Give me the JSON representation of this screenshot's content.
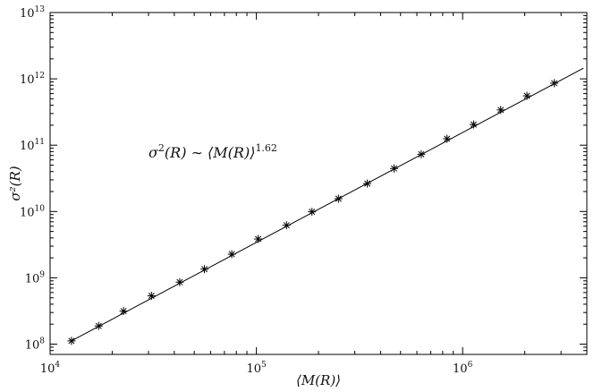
{
  "chart_data": {
    "type": "scatter",
    "title": "",
    "xlabel": "⟨M(R)⟩",
    "ylabel": "σ²(R)",
    "xscale": "log",
    "yscale": "log",
    "xlim": [
      10000,
      4000000
    ],
    "ylim": [
      70000000,
      10000000000000
    ],
    "grid": false,
    "legend": "none",
    "x_ticks": [
      {
        "base": "10",
        "exp": "4",
        "value": 10000
      },
      {
        "base": "10",
        "exp": "5",
        "value": 100000
      },
      {
        "base": "10",
        "exp": "6",
        "value": 1000000
      }
    ],
    "y_ticks": [
      {
        "base": "10",
        "exp": "8",
        "value": 100000000
      },
      {
        "base": "10",
        "exp": "9",
        "value": 1000000000
      },
      {
        "base": "10",
        "exp": "10",
        "value": 10000000000
      },
      {
        "base": "10",
        "exp": "11",
        "value": 100000000000
      },
      {
        "base": "10",
        "exp": "12",
        "value": 1000000000000
      },
      {
        "base": "10",
        "exp": "13",
        "value": 10000000000000
      }
    ],
    "series": [
      {
        "marker": "asterisk",
        "line": false,
        "points": [
          {
            "x": 12700,
            "y": 112000000
          },
          {
            "x": 17200,
            "y": 188000000
          },
          {
            "x": 22700,
            "y": 315000000
          },
          {
            "x": 31000,
            "y": 535000000
          },
          {
            "x": 42500,
            "y": 860000000
          },
          {
            "x": 56000,
            "y": 1350000000
          },
          {
            "x": 76000,
            "y": 2270000000
          },
          {
            "x": 102000,
            "y": 3850000000
          },
          {
            "x": 140000,
            "y": 6200000000
          },
          {
            "x": 186000,
            "y": 9900000000
          },
          {
            "x": 250000,
            "y": 15600000000
          },
          {
            "x": 345000,
            "y": 26400000000
          },
          {
            "x": 465000,
            "y": 44500000000
          },
          {
            "x": 630000,
            "y": 73000000000
          },
          {
            "x": 840000,
            "y": 125000000000
          },
          {
            "x": 1130000,
            "y": 205000000000
          },
          {
            "x": 1530000,
            "y": 340000000000
          },
          {
            "x": 2050000,
            "y": 555000000000
          },
          {
            "x": 2780000,
            "y": 860000000000
          }
        ]
      },
      {
        "marker": "none",
        "line": true,
        "points": [
          {
            "x": 12700,
            "y": 112000000
          },
          {
            "x": 3850000,
            "y": 1450000000000
          }
        ]
      }
    ],
    "annotations": [
      {
        "base": "σ",
        "base_exp": "2",
        "mid": "(R) ∼ ⟨M(R)⟩",
        "exp": "1.62"
      }
    ]
  }
}
